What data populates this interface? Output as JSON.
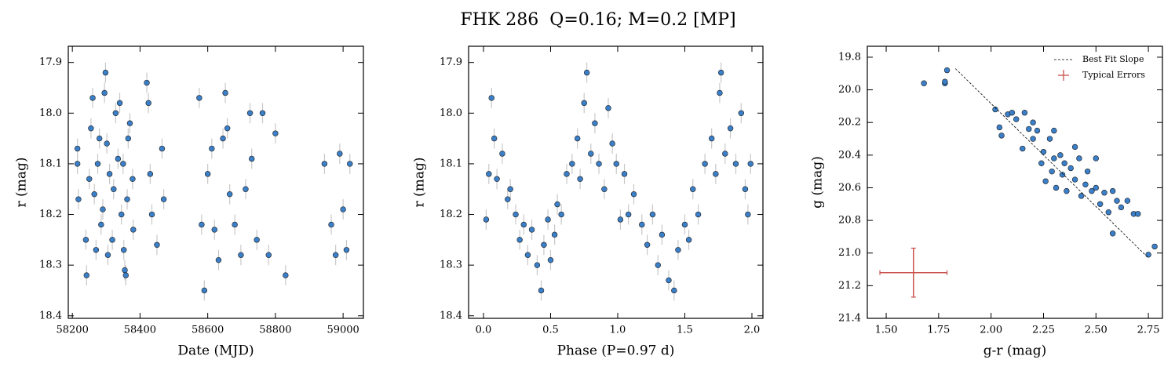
{
  "title": "FHK 286  Q=0.16; M=0.2 [MP]",
  "chart_data": [
    {
      "type": "scatter",
      "xlabel": "Date (MJD)",
      "ylabel": "r (mag)",
      "xlim": [
        58188,
        59060
      ],
      "ylim": [
        17.868,
        18.405
      ],
      "invert_y": true,
      "xticks": [
        58200,
        58400,
        58600,
        58800,
        59000
      ],
      "yticks": [
        17.9,
        {
          "value": 18,
          "label": "18.0"
        },
        18.1,
        18.2,
        18.3,
        18.4
      ],
      "series": [
        {
          "type": "scatter",
          "color": "#3a7fc8",
          "yerr": 0.02,
          "err_color": "#c8c8c8",
          "x": [
            58215,
            58215,
            58218,
            58240,
            58242,
            58250,
            58255,
            58260,
            58265,
            58270,
            58275,
            58280,
            58285,
            58290,
            58295,
            58298,
            58302,
            58305,
            58310,
            58318,
            58322,
            58328,
            58335,
            58340,
            58345,
            58350,
            58352,
            58355,
            58358,
            58362,
            58365,
            58370,
            58378,
            58380,
            58420,
            58425,
            58430,
            58435,
            58450,
            58465,
            58470,
            58575,
            58582,
            58590,
            58600,
            58612,
            58620,
            58632,
            58645,
            58652,
            58658,
            58665,
            58680,
            58698,
            58712,
            58725,
            58730,
            58745,
            58762,
            58780,
            58800,
            58830,
            58945,
            58965,
            58978,
            58990,
            59000,
            59010,
            59020
          ],
          "y": [
            18.07,
            18.1,
            18.17,
            18.25,
            18.32,
            18.13,
            18.03,
            17.97,
            18.16,
            18.27,
            18.1,
            18.05,
            18.22,
            18.19,
            17.96,
            17.92,
            18.06,
            18.28,
            18.12,
            18.25,
            18.15,
            18.0,
            18.09,
            17.98,
            18.2,
            18.1,
            18.27,
            18.31,
            18.32,
            18.17,
            18.05,
            18.02,
            18.13,
            18.23,
            17.94,
            17.98,
            18.12,
            18.2,
            18.26,
            18.07,
            18.17,
            17.97,
            18.22,
            18.35,
            18.12,
            18.07,
            18.23,
            18.29,
            18.05,
            17.96,
            18.03,
            18.16,
            18.22,
            18.28,
            18.15,
            18.0,
            18.09,
            18.25,
            18.0,
            18.28,
            18.04,
            18.32,
            18.1,
            18.22,
            18.28,
            18.08,
            18.19,
            18.27,
            18.1
          ]
        }
      ]
    },
    {
      "type": "scatter",
      "xlabel": "Phase (P=0.97 d)",
      "ylabel": "r (mag)",
      "xlim": [
        -0.111,
        2.082
      ],
      "ylim": [
        17.868,
        18.405
      ],
      "invert_y": true,
      "xticks": [
        {
          "value": 0,
          "label": "0.0"
        },
        0.5,
        {
          "value": 1,
          "label": "1.0"
        },
        1.5,
        {
          "value": 2,
          "label": "2.0"
        }
      ],
      "yticks": [
        17.9,
        {
          "value": 18,
          "label": "18.0"
        },
        18.1,
        18.2,
        18.3,
        18.4
      ],
      "series": [
        {
          "type": "scatter",
          "color": "#3a7fc8",
          "yerr": 0.02,
          "err_color": "#c8c8c8",
          "x": [
            0.02,
            0.04,
            0.06,
            0.08,
            0.1,
            0.14,
            0.18,
            0.2,
            0.24,
            0.27,
            0.3,
            0.33,
            0.36,
            0.4,
            0.43,
            0.45,
            0.48,
            0.5,
            0.53,
            0.55,
            0.58,
            0.62,
            0.66,
            0.7,
            0.72,
            0.75,
            0.77,
            0.8,
            0.83,
            0.86,
            0.9,
            0.93,
            0.96,
            0.99,
            1.02,
            1.05,
            1.08,
            1.12,
            1.18,
            1.22,
            1.26,
            1.3,
            1.33,
            1.38,
            1.42,
            1.45,
            1.5,
            1.53,
            1.56,
            1.6,
            1.65,
            1.7,
            1.73,
            1.76,
            1.77,
            1.8,
            1.84,
            1.88,
            1.92,
            1.95,
            1.97,
            1.99
          ],
          "y": [
            18.21,
            18.12,
            17.97,
            18.05,
            18.13,
            18.08,
            18.17,
            18.15,
            18.2,
            18.25,
            18.22,
            18.28,
            18.23,
            18.3,
            18.35,
            18.26,
            18.21,
            18.29,
            18.24,
            18.18,
            18.2,
            18.12,
            18.1,
            18.05,
            18.13,
            17.98,
            17.92,
            18.08,
            18.02,
            18.1,
            18.15,
            17.99,
            18.06,
            18.1,
            18.21,
            18.12,
            18.2,
            18.16,
            18.22,
            18.26,
            18.2,
            18.3,
            18.24,
            18.33,
            18.35,
            18.27,
            18.22,
            18.25,
            18.15,
            18.2,
            18.1,
            18.05,
            18.12,
            17.96,
            17.92,
            18.08,
            18.03,
            18.1,
            18.0,
            18.15,
            18.2,
            18.1
          ]
        }
      ]
    },
    {
      "type": "scatter",
      "xlabel": "g-r (mag)",
      "ylabel": "g (mag)",
      "xlim": [
        1.41,
        2.817
      ],
      "ylim": [
        19.733,
        21.4
      ],
      "invert_y": true,
      "legend": "upper right",
      "xticks": [
        {
          "value": 1.5,
          "label": "1.50"
        },
        1.75,
        {
          "value": 2,
          "label": "2.00"
        },
        2.25,
        {
          "value": 2.5,
          "label": "2.50"
        },
        2.75
      ],
      "yticks": [
        19.8,
        {
          "value": 20,
          "label": "20.0"
        },
        20.2,
        20.4,
        20.6,
        20.8,
        {
          "value": 21,
          "label": "21.0"
        },
        21.2,
        21.4
      ],
      "series": [
        {
          "type": "scatter",
          "color": "#3a7fc8",
          "x": [
            1.68,
            1.78,
            1.78,
            1.79,
            2.02,
            2.04,
            2.05,
            2.08,
            2.1,
            2.12,
            2.15,
            2.16,
            2.18,
            2.2,
            2.22,
            2.24,
            2.25,
            2.26,
            2.28,
            2.29,
            2.3,
            2.31,
            2.33,
            2.34,
            2.35,
            2.36,
            2.38,
            2.4,
            2.42,
            2.43,
            2.45,
            2.46,
            2.48,
            2.5,
            2.52,
            2.54,
            2.56,
            2.58,
            2.6,
            2.62,
            2.65,
            2.68,
            2.7,
            2.58,
            2.75,
            2.78,
            2.5,
            2.4,
            2.3,
            2.2
          ],
          "y": [
            19.96,
            19.96,
            19.95,
            19.88,
            20.12,
            20.23,
            20.28,
            20.15,
            20.14,
            20.18,
            20.36,
            20.14,
            20.24,
            20.3,
            20.25,
            20.45,
            20.38,
            20.56,
            20.3,
            20.5,
            20.42,
            20.6,
            20.4,
            20.52,
            20.45,
            20.62,
            20.48,
            20.55,
            20.42,
            20.65,
            20.58,
            20.5,
            20.62,
            20.6,
            20.7,
            20.63,
            20.75,
            20.62,
            20.68,
            20.72,
            20.68,
            20.76,
            20.76,
            20.88,
            21.01,
            20.96,
            20.42,
            20.35,
            20.25,
            20.2
          ]
        },
        {
          "type": "line",
          "name": "Best Fit Slope",
          "color": "#000000",
          "dashed": true,
          "x": [
            1.83,
            2.75
          ],
          "y": [
            19.87,
            21.03
          ]
        },
        {
          "type": "errorbar",
          "name": "Typical Errors",
          "color": "#c9504c",
          "x": [
            1.63
          ],
          "y": [
            21.12
          ],
          "xerr": [
            0.16
          ],
          "yerr": [
            0.15
          ]
        }
      ]
    }
  ]
}
